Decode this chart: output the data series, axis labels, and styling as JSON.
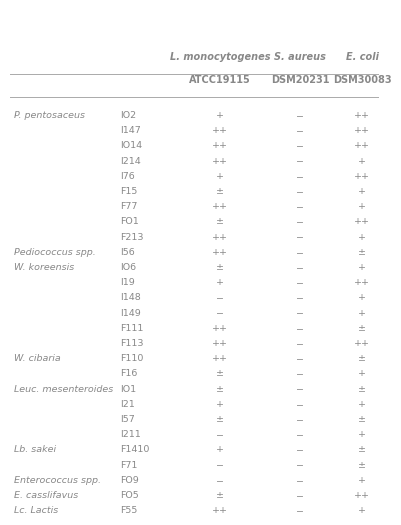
{
  "title_line1": "L. monocytogenes",
  "title_line2": "S. aureus",
  "title_line3": "E. coli",
  "subtitle_line1": "ATCC19115",
  "subtitle_line2": "DSM20231",
  "subtitle_line3": "DSM30083",
  "rows": [
    [
      "P. pentosaceus",
      "IO2",
      "+",
      "−",
      "++"
    ],
    [
      "",
      "I147",
      "++",
      "−",
      "++"
    ],
    [
      "",
      "IO14",
      "++",
      "−",
      "++"
    ],
    [
      "",
      "I214",
      "++",
      "−",
      "+"
    ],
    [
      "",
      "I76",
      "+",
      "−",
      "++"
    ],
    [
      "",
      "F15",
      "±",
      "−",
      "+"
    ],
    [
      "",
      "F77",
      "++",
      "−",
      "+"
    ],
    [
      "",
      "FO1",
      "±",
      "−",
      "++"
    ],
    [
      "",
      "F213",
      "++",
      "−",
      "+"
    ],
    [
      "Pediococcus spp.",
      "I56",
      "++",
      "−",
      "±"
    ],
    [
      "W. koreensis",
      "IO6",
      "±",
      "−",
      "+"
    ],
    [
      "",
      "I19",
      "+",
      "−",
      "++"
    ],
    [
      "",
      "I148",
      "−",
      "−",
      "+"
    ],
    [
      "",
      "I149",
      "−",
      "−",
      "+"
    ],
    [
      "",
      "F111",
      "++",
      "−",
      "±"
    ],
    [
      "",
      "F113",
      "++",
      "−",
      "++"
    ],
    [
      "W. cibaria",
      "F110",
      "++",
      "−",
      "±"
    ],
    [
      "",
      "F16",
      "±",
      "−",
      "+"
    ],
    [
      "Leuc. mesenteroides",
      "IO1",
      "±",
      "−",
      "±"
    ],
    [
      "",
      "I21",
      "+",
      "−",
      "+"
    ],
    [
      "",
      "I57",
      "±",
      "−",
      "±"
    ],
    [
      "",
      "I211",
      "−",
      "−",
      "+"
    ],
    [
      "Lb. sakei",
      "F1410",
      "+",
      "−",
      "±"
    ],
    [
      "",
      "F71",
      "−",
      "−",
      "±"
    ],
    [
      "Enterococcus spp.",
      "FO9",
      "−",
      "−",
      "+"
    ],
    [
      "E. casslifavus",
      "FO5",
      "±",
      "−",
      "++"
    ],
    [
      "Lc. Lactis",
      "F55",
      "++",
      "−",
      "+"
    ]
  ],
  "bg_color": "#ffffff",
  "text_color": "#888888",
  "line_color": "#aaaaaa",
  "font_size": 6.8,
  "header_font_size": 7.0
}
